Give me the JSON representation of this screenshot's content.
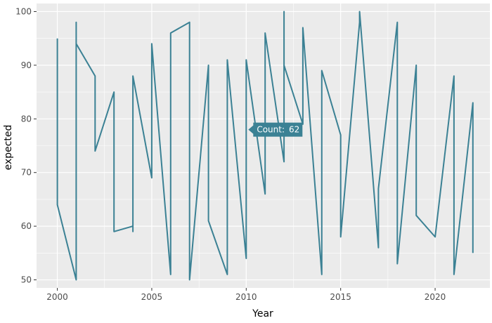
{
  "chart_data": {
    "type": "line",
    "xlabel": "Year",
    "ylabel": "expected",
    "xlim": [
      1998.9,
      2022.9
    ],
    "ylim": [
      48.5,
      101.5
    ],
    "x_ticks": [
      2000,
      2005,
      2010,
      2015,
      2020
    ],
    "y_ticks": [
      50,
      60,
      70,
      80,
      90,
      100
    ],
    "grid": true,
    "line_color": "#3b8194",
    "panel_bg": "#ebebeb",
    "grid_color": "#ffffff",
    "series": [
      {
        "x": [
          2000,
          2000,
          2000,
          2001,
          2001,
          2001,
          2002,
          2002,
          2003,
          2003,
          2004,
          2004,
          2004,
          2005,
          2005,
          2006,
          2006,
          2007,
          2007,
          2008,
          2008,
          2009,
          2009,
          2010,
          2010,
          2011,
          2011,
          2012,
          2012,
          2012,
          2013,
          2013,
          2014,
          2014,
          2015,
          2015,
          2016,
          2016,
          2017,
          2017,
          2018,
          2018,
          2019,
          2019,
          2020,
          2021,
          2021,
          2022,
          2022
        ],
        "y": [
          95,
          64,
          64,
          50,
          98,
          94,
          88,
          74,
          85,
          59,
          60,
          59,
          88,
          69,
          94,
          51,
          96,
          98,
          50,
          90,
          61,
          51,
          91,
          54,
          91,
          66,
          96,
          72,
          100,
          90,
          79,
          97,
          51,
          89,
          77,
          58,
          98,
          100,
          56,
          67,
          98,
          53,
          90,
          62,
          58,
          88,
          51,
          83,
          55
        ]
      }
    ],
    "tooltip": {
      "label": "Count:",
      "value": "62",
      "anchor_x": 2010,
      "anchor_y": 78
    }
  }
}
